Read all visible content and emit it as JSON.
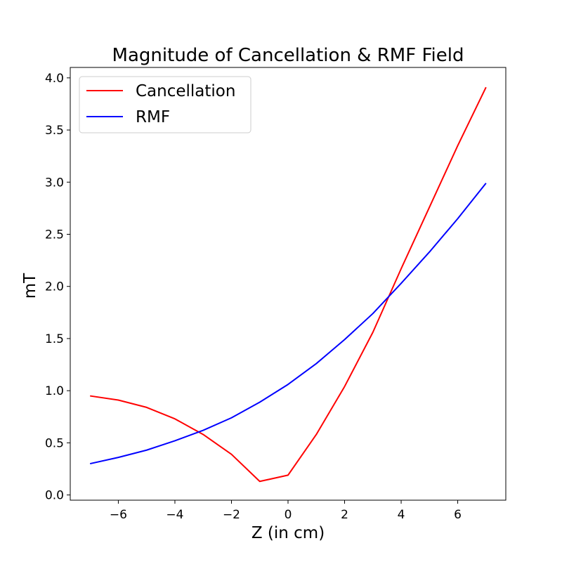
{
  "chart_data": {
    "type": "line",
    "title": "Magnitude of Cancellation & RMF Field",
    "xlabel": "Z (in cm)",
    "ylabel": "mT",
    "xlim": [
      -7.7,
      7.7
    ],
    "ylim": [
      -0.05,
      4.1
    ],
    "xticks": [
      -6,
      -4,
      -2,
      0,
      2,
      4,
      6
    ],
    "xtick_labels": [
      "−6",
      "−4",
      "−2",
      "0",
      "2",
      "4",
      "6"
    ],
    "yticks": [
      0.0,
      0.5,
      1.0,
      1.5,
      2.0,
      2.5,
      3.0,
      3.5,
      4.0
    ],
    "ytick_labels": [
      "0.0",
      "0.5",
      "1.0",
      "1.5",
      "2.0",
      "2.5",
      "3.0",
      "3.5",
      "4.0"
    ],
    "grid": false,
    "legend_position": "top-left",
    "x": [
      -7,
      -6,
      -5,
      -4,
      -3,
      -2,
      -1,
      0,
      1,
      2,
      3,
      4,
      5,
      6,
      7
    ],
    "series": [
      {
        "name": "Cancellation",
        "color": "#ff0000",
        "values": [
          0.95,
          0.91,
          0.84,
          0.73,
          0.58,
          0.39,
          0.13,
          0.19,
          0.58,
          1.04,
          1.56,
          2.17,
          2.76,
          3.35,
          3.91
        ]
      },
      {
        "name": "RMF",
        "color": "#0000ff",
        "values": [
          0.3,
          0.36,
          0.43,
          0.52,
          0.62,
          0.74,
          0.89,
          1.06,
          1.26,
          1.49,
          1.74,
          2.03,
          2.33,
          2.65,
          2.99
        ]
      }
    ]
  }
}
